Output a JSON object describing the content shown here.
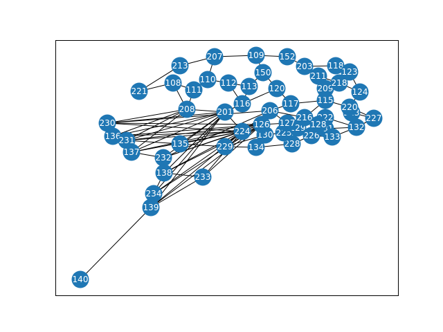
{
  "graph": {
    "node_color": "#1f77b4",
    "label_color": "#ffffff",
    "edge_color": "#000000",
    "nodes": [
      {
        "id": "221"
      },
      {
        "id": "213"
      },
      {
        "id": "207"
      },
      {
        "id": "109"
      },
      {
        "id": "152"
      },
      {
        "id": "203"
      },
      {
        "id": "118"
      },
      {
        "id": "123"
      },
      {
        "id": "124"
      },
      {
        "id": "115"
      },
      {
        "id": "223"
      },
      {
        "id": "220"
      },
      {
        "id": "227"
      },
      {
        "id": "132"
      },
      {
        "id": "131"
      },
      {
        "id": "133"
      },
      {
        "id": "228"
      },
      {
        "id": "226"
      },
      {
        "id": "225"
      },
      {
        "id": "134"
      },
      {
        "id": "130"
      },
      {
        "id": "224"
      },
      {
        "id": "229"
      },
      {
        "id": "135"
      },
      {
        "id": "230"
      },
      {
        "id": "136"
      },
      {
        "id": "231"
      },
      {
        "id": "137"
      },
      {
        "id": "232"
      },
      {
        "id": "138"
      },
      {
        "id": "233"
      },
      {
        "id": "234"
      },
      {
        "id": "139"
      },
      {
        "id": "140"
      },
      {
        "id": "208"
      },
      {
        "id": "201"
      },
      {
        "id": "126"
      },
      {
        "id": "129"
      },
      {
        "id": "206"
      },
      {
        "id": "216"
      },
      {
        "id": "222"
      },
      {
        "id": "128"
      },
      {
        "id": "110"
      },
      {
        "id": "112"
      },
      {
        "id": "113"
      },
      {
        "id": "120"
      },
      {
        "id": "127"
      },
      {
        "id": "209"
      },
      {
        "id": "150"
      },
      {
        "id": "108"
      },
      {
        "id": "111"
      },
      {
        "id": "116"
      },
      {
        "id": "117"
      },
      {
        "id": "211"
      },
      {
        "id": "218"
      }
    ]
  }
}
